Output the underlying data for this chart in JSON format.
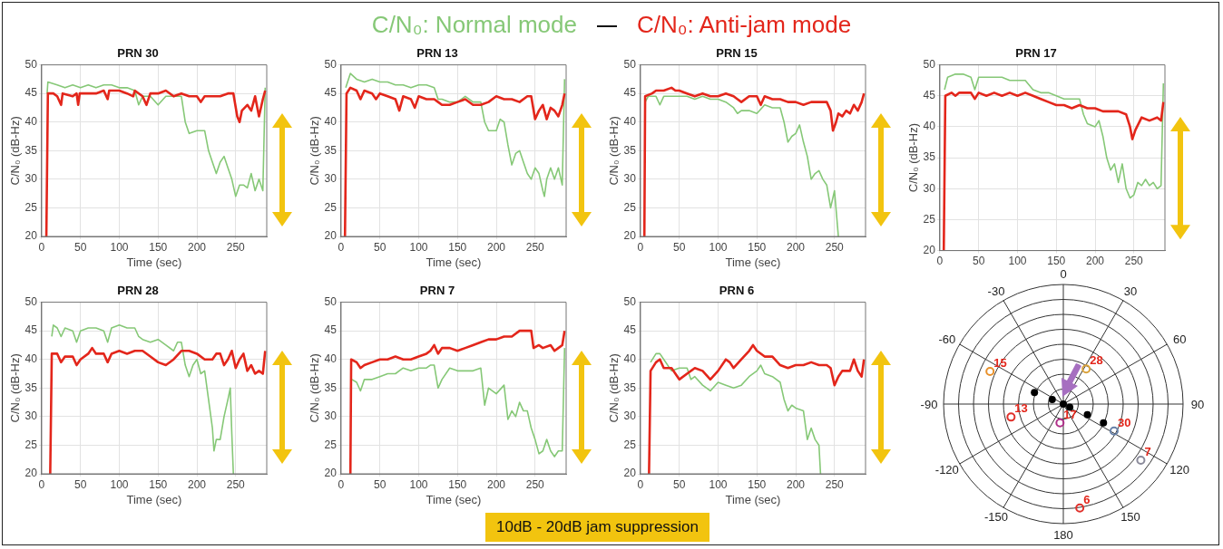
{
  "chart_data": [
    {
      "type": "line",
      "title": "PRN 30",
      "xlabel": "Time (sec)",
      "ylabel": "C/N₀ (dB-Hz)",
      "xlim": [
        0,
        290
      ],
      "xticks": [
        0,
        50,
        100,
        150,
        200,
        250
      ],
      "ylim": [
        20,
        50
      ],
      "yticks": [
        20,
        25,
        30,
        35,
        40,
        45,
        50
      ],
      "grid": true,
      "legend": "top",
      "annotations": [
        "10dB - 20dB jam suppression"
      ],
      "series": [
        {
          "name": "C/N₀: Normal mode",
          "color": "#86c877",
          "x": [
            7,
            8,
            20,
            30,
            40,
            50,
            60,
            70,
            80,
            90,
            100,
            110,
            120,
            125,
            130,
            140,
            150,
            160,
            170,
            180,
            185,
            190,
            200,
            210,
            215,
            220,
            225,
            230,
            235,
            240,
            245,
            250,
            255,
            260,
            265,
            270,
            275,
            280,
            285,
            288
          ],
          "values": [
            45,
            47,
            46.5,
            46,
            46.5,
            46,
            46.5,
            46,
            46.5,
            46.5,
            46,
            46,
            45.5,
            43,
            44.5,
            44.5,
            43,
            44.5,
            44.5,
            44.5,
            40,
            38,
            38.5,
            38.5,
            35,
            33,
            31,
            33,
            34,
            32,
            30,
            27,
            29,
            29,
            28.5,
            31,
            28,
            30,
            28,
            46
          ]
        },
        {
          "name": "C/N₀: Anti-jam mode",
          "color": "#e3261b",
          "x": [
            6,
            8,
            15,
            20,
            25,
            27,
            40,
            45,
            47,
            49,
            60,
            70,
            80,
            85,
            87,
            100,
            110,
            118,
            120,
            130,
            135,
            140,
            150,
            160,
            170,
            180,
            190,
            200,
            205,
            210,
            220,
            230,
            240,
            247,
            252,
            255,
            258,
            265,
            270,
            275,
            280,
            285,
            288
          ],
          "values": [
            20,
            45,
            45,
            44.5,
            43,
            45,
            44.5,
            45,
            43,
            45,
            45,
            45,
            45.5,
            44,
            45.5,
            45.5,
            45,
            44.5,
            45.5,
            44.5,
            43,
            45,
            45,
            45.5,
            44.5,
            45,
            44.5,
            44.5,
            43.5,
            44.5,
            44.5,
            44.5,
            45,
            45,
            41,
            40,
            42,
            43,
            42,
            44.5,
            41,
            44,
            45.5
          ]
        }
      ]
    },
    {
      "type": "line",
      "title": "PRN 13",
      "xlabel": "Time (sec)",
      "ylabel": "C/N₀ (dB-Hz)",
      "xlim": [
        0,
        290
      ],
      "xticks": [
        0,
        50,
        100,
        150,
        200,
        250
      ],
      "ylim": [
        20,
        50
      ],
      "yticks": [
        20,
        25,
        30,
        35,
        40,
        45,
        50
      ],
      "grid": true,
      "series": [
        {
          "color": "#86c877",
          "x": [
            6,
            12,
            20,
            30,
            40,
            50,
            60,
            70,
            80,
            90,
            100,
            110,
            120,
            125,
            130,
            140,
            150,
            160,
            170,
            180,
            185,
            190,
            200,
            205,
            210,
            215,
            220,
            225,
            230,
            235,
            240,
            245,
            250,
            255,
            260,
            262,
            265,
            270,
            275,
            280,
            285,
            288
          ],
          "values": [
            46,
            48.5,
            47.5,
            47,
            47.5,
            47,
            47,
            46.5,
            46.5,
            46,
            46.5,
            46.5,
            46,
            44,
            44,
            43.5,
            43.5,
            44.5,
            43.5,
            43.5,
            40,
            38.5,
            38.5,
            40.5,
            40,
            36,
            32.5,
            34.5,
            35,
            33,
            31,
            30,
            32,
            31,
            28,
            27,
            30,
            32,
            30,
            32,
            29,
            47.5
          ]
        },
        {
          "color": "#e3261b",
          "x": [
            5,
            7,
            12,
            20,
            25,
            30,
            40,
            45,
            50,
            60,
            70,
            75,
            80,
            90,
            95,
            100,
            110,
            120,
            125,
            130,
            140,
            150,
            160,
            170,
            180,
            190,
            200,
            210,
            220,
            230,
            240,
            245,
            250,
            255,
            260,
            265,
            270,
            275,
            280,
            285,
            288
          ],
          "values": [
            20,
            45,
            46,
            45.5,
            44,
            45.5,
            45,
            44,
            45,
            44.5,
            44,
            42,
            44.5,
            44,
            42.5,
            44.5,
            44,
            44,
            43.5,
            43,
            43,
            43.5,
            44,
            43,
            43,
            43.5,
            44.5,
            44,
            44,
            43.5,
            44.5,
            44.5,
            40.5,
            42,
            43,
            40.5,
            42.5,
            42,
            41,
            43,
            45
          ]
        }
      ]
    },
    {
      "type": "line",
      "title": "PRN 15",
      "xlabel": "Time (sec)",
      "ylabel": "C/N₀ (dB-Hz)",
      "xlim": [
        0,
        290
      ],
      "xticks": [
        0,
        50,
        100,
        150,
        200,
        250
      ],
      "ylim": [
        20,
        50
      ],
      "yticks": [
        20,
        25,
        30,
        35,
        40,
        45,
        50
      ],
      "grid": true,
      "series": [
        {
          "color": "#86c877",
          "x": [
            6,
            10,
            20,
            25,
            30,
            40,
            50,
            60,
            70,
            80,
            90,
            100,
            110,
            120,
            125,
            130,
            140,
            150,
            160,
            170,
            180,
            185,
            190,
            195,
            200,
            205,
            210,
            215,
            220,
            225,
            230,
            235,
            240,
            245,
            250,
            255
          ],
          "values": [
            43.5,
            44.5,
            44.5,
            43,
            44.5,
            44.5,
            44.5,
            44.5,
            44,
            44.5,
            44,
            44,
            43.5,
            42.5,
            41.5,
            42,
            42,
            41.5,
            43,
            42.5,
            42.5,
            40,
            36.5,
            37.5,
            38,
            39.5,
            36.5,
            34,
            30,
            31,
            31.5,
            30,
            29,
            25,
            28,
            20
          ]
        },
        {
          "color": "#e3261b",
          "x": [
            5,
            6,
            15,
            20,
            30,
            40,
            45,
            50,
            60,
            70,
            80,
            90,
            100,
            110,
            120,
            125,
            130,
            140,
            150,
            155,
            160,
            170,
            180,
            190,
            200,
            210,
            220,
            230,
            240,
            245,
            248,
            252,
            255,
            260,
            265,
            270,
            275,
            280,
            285,
            288
          ],
          "values": [
            20,
            44.5,
            45,
            45.5,
            45.5,
            46,
            45.5,
            45.5,
            45,
            44.5,
            45,
            44.5,
            44.5,
            45,
            44.5,
            44,
            43.5,
            44.5,
            44.5,
            43,
            44.5,
            44,
            44,
            43.5,
            43.5,
            43,
            43.5,
            43.5,
            43.5,
            42,
            38.5,
            40,
            41.5,
            41,
            42,
            41.5,
            43,
            42,
            43.5,
            45
          ]
        }
      ]
    },
    {
      "type": "line",
      "title": "PRN 17",
      "ylabel": "C/N₀ (dB-Hz)",
      "xlim": [
        0,
        290
      ],
      "xticks": [
        0,
        50,
        100,
        150,
        200,
        250
      ],
      "ylim": [
        20,
        50
      ],
      "yticks": [
        20,
        25,
        30,
        35,
        40,
        45,
        50
      ],
      "grid": true,
      "series": [
        {
          "color": "#86c877",
          "x": [
            6,
            10,
            20,
            30,
            40,
            45,
            50,
            60,
            70,
            80,
            90,
            100,
            110,
            120,
            130,
            140,
            150,
            160,
            170,
            180,
            185,
            190,
            200,
            205,
            210,
            215,
            220,
            225,
            230,
            235,
            240,
            245,
            250,
            255,
            260,
            265,
            270,
            275,
            280,
            285,
            288
          ],
          "values": [
            46,
            48,
            48.5,
            48.5,
            48,
            46,
            48,
            48,
            48,
            48,
            47.5,
            47.5,
            47.5,
            46,
            45.5,
            45.5,
            45,
            44.5,
            44.5,
            44.5,
            42,
            40.5,
            40,
            41,
            38.5,
            35,
            33,
            34,
            31,
            34,
            30,
            28.5,
            29,
            31,
            30.5,
            31.5,
            30.5,
            31,
            30,
            30.5,
            47
          ]
        },
        {
          "color": "#e3261b",
          "x": [
            5,
            7,
            15,
            20,
            25,
            30,
            40,
            45,
            50,
            60,
            70,
            80,
            90,
            100,
            110,
            120,
            130,
            140,
            150,
            160,
            170,
            180,
            190,
            200,
            210,
            220,
            230,
            240,
            245,
            248,
            252,
            260,
            270,
            280,
            285,
            288
          ],
          "values": [
            20,
            45,
            45.5,
            45,
            45.5,
            45.5,
            45.5,
            44.5,
            45.5,
            45,
            45.5,
            45,
            45.5,
            45,
            45.5,
            45,
            44.5,
            44,
            43.5,
            43.5,
            43,
            43.5,
            43,
            43,
            42.5,
            42.5,
            42.5,
            42,
            40,
            38,
            39.5,
            41.5,
            41,
            41.5,
            41,
            44
          ]
        }
      ]
    },
    {
      "type": "line",
      "title": "PRN 28",
      "xlabel": "Time (sec)",
      "ylabel": "C/N₀ (dB-Hz)",
      "xlim": [
        0,
        290
      ],
      "xticks": [
        0,
        50,
        100,
        150,
        200,
        250
      ],
      "ylim": [
        20,
        50
      ],
      "yticks": [
        20,
        25,
        30,
        35,
        40,
        45,
        50
      ],
      "grid": true,
      "series": [
        {
          "color": "#86c877",
          "x": [
            13,
            15,
            20,
            25,
            30,
            40,
            45,
            50,
            60,
            70,
            80,
            85,
            90,
            100,
            110,
            120,
            125,
            130,
            140,
            150,
            160,
            170,
            175,
            180,
            185,
            190,
            195,
            200,
            205,
            210,
            215,
            220,
            222,
            225,
            230,
            235,
            240,
            243,
            245,
            247
          ],
          "values": [
            44,
            46,
            45.5,
            44,
            45.5,
            45,
            43,
            45,
            45.5,
            45.5,
            45,
            43,
            45.5,
            46,
            45.5,
            45.5,
            44,
            43.5,
            43,
            43.5,
            42.5,
            41.5,
            43,
            43,
            39,
            37,
            39,
            40,
            37.5,
            38,
            33,
            28,
            24,
            26,
            26,
            30,
            33,
            35,
            27,
            20
          ]
        },
        {
          "color": "#e3261b",
          "x": [
            11,
            13,
            20,
            25,
            30,
            40,
            45,
            50,
            60,
            65,
            70,
            80,
            85,
            90,
            100,
            110,
            120,
            130,
            140,
            150,
            160,
            170,
            180,
            190,
            200,
            210,
            220,
            225,
            230,
            235,
            240,
            245,
            250,
            255,
            260,
            265,
            270,
            275,
            280,
            285,
            288
          ],
          "values": [
            20,
            41,
            41,
            39.5,
            40.5,
            40.5,
            39,
            40,
            41,
            42,
            41,
            41,
            39.5,
            41,
            41.5,
            41,
            41.5,
            41.5,
            40.5,
            39.5,
            39,
            40,
            41.5,
            41.5,
            41,
            40,
            40,
            41,
            41,
            39,
            40,
            41.5,
            38.5,
            40,
            41,
            38,
            39,
            37.5,
            38,
            37.5,
            41.5
          ]
        }
      ]
    },
    {
      "type": "line",
      "title": "PRN 7",
      "xlabel": "Time (sec)",
      "ylabel": "C/N₀ (dB-Hz)",
      "xlim": [
        0,
        290
      ],
      "xticks": [
        0,
        50,
        100,
        150,
        200,
        250
      ],
      "ylim": [
        20,
        50
      ],
      "yticks": [
        20,
        25,
        30,
        35,
        40,
        45,
        50
      ],
      "grid": true,
      "series": [
        {
          "color": "#86c877",
          "x": [
            14,
            20,
            25,
            30,
            40,
            50,
            60,
            70,
            80,
            90,
            100,
            110,
            115,
            120,
            125,
            130,
            140,
            150,
            160,
            170,
            180,
            185,
            190,
            200,
            210,
            215,
            220,
            225,
            230,
            235,
            240,
            245,
            250,
            255,
            260,
            265,
            270,
            275,
            280,
            285,
            288
          ],
          "values": [
            36.5,
            36,
            34.5,
            36.5,
            36.5,
            37,
            37.5,
            37.5,
            38.5,
            38,
            38.5,
            38.5,
            39,
            39,
            35,
            36.5,
            38.5,
            38,
            38,
            38,
            38.5,
            32,
            35,
            34,
            35.5,
            29.5,
            31,
            30,
            32.5,
            31,
            31,
            28,
            26,
            23.5,
            24,
            26,
            24,
            23,
            24,
            24,
            42
          ]
        },
        {
          "color": "#e3261b",
          "x": [
            12,
            13,
            20,
            25,
            30,
            40,
            50,
            60,
            70,
            80,
            90,
            100,
            110,
            115,
            120,
            125,
            130,
            140,
            150,
            160,
            170,
            180,
            190,
            200,
            210,
            220,
            230,
            240,
            245,
            248,
            255,
            260,
            270,
            275,
            280,
            285,
            288
          ],
          "values": [
            20,
            40,
            39.5,
            38.5,
            39,
            39.5,
            40,
            40,
            40.5,
            40,
            40,
            40.5,
            41,
            41.5,
            42.5,
            41,
            42,
            42,
            41.5,
            42,
            42.5,
            43,
            43.5,
            43.5,
            44,
            44,
            45,
            45,
            45,
            42,
            42.5,
            42,
            42.5,
            41.5,
            42,
            42.5,
            45
          ]
        }
      ]
    },
    {
      "type": "line",
      "title": "PRN 6",
      "xlabel": "Time (sec)",
      "ylabel": "C/N₀ (dB-Hz)",
      "xlim": [
        0,
        290
      ],
      "xticks": [
        0,
        50,
        100,
        150,
        200,
        250
      ],
      "ylim": [
        20,
        50
      ],
      "yticks": [
        20,
        25,
        30,
        35,
        40,
        45,
        50
      ],
      "grid": true,
      "series": [
        {
          "color": "#86c877",
          "x": [
            13,
            20,
            25,
            30,
            40,
            50,
            60,
            65,
            70,
            80,
            90,
            100,
            110,
            120,
            130,
            140,
            150,
            155,
            160,
            170,
            180,
            185,
            190,
            195,
            200,
            210,
            215,
            220,
            225,
            230,
            232
          ],
          "values": [
            39.5,
            41,
            41,
            40,
            38,
            38.5,
            38.5,
            36.5,
            37,
            35.5,
            34.5,
            36,
            35.5,
            35,
            35.5,
            37,
            38,
            39,
            37.5,
            37,
            36,
            33,
            31,
            32,
            31.5,
            31,
            26,
            28,
            26,
            25,
            20
          ]
        },
        {
          "color": "#e3261b",
          "x": [
            11,
            13,
            20,
            25,
            30,
            40,
            50,
            60,
            70,
            80,
            90,
            100,
            110,
            115,
            120,
            130,
            140,
            145,
            150,
            160,
            170,
            180,
            190,
            200,
            210,
            220,
            230,
            240,
            245,
            250,
            255,
            260,
            270,
            275,
            280,
            285,
            288
          ],
          "values": [
            20,
            38,
            39.5,
            40,
            38.5,
            38.5,
            36.5,
            37.5,
            38.5,
            38,
            36.5,
            38,
            40,
            39.5,
            38.5,
            40,
            41.5,
            42.5,
            41.5,
            40.5,
            40.5,
            39,
            38.5,
            39,
            39,
            39.5,
            39,
            39,
            38.5,
            35.5,
            37,
            38,
            38,
            40,
            38,
            37,
            40
          ]
        }
      ]
    },
    {
      "type": "other",
      "annotations": [
        "0",
        "30",
        "60",
        "90",
        "120",
        "150",
        "180",
        "-150",
        "-120",
        "-90",
        "-60",
        "-30",
        "15",
        "28",
        "13",
        "17",
        "30",
        "7",
        "6"
      ]
    }
  ]
}
